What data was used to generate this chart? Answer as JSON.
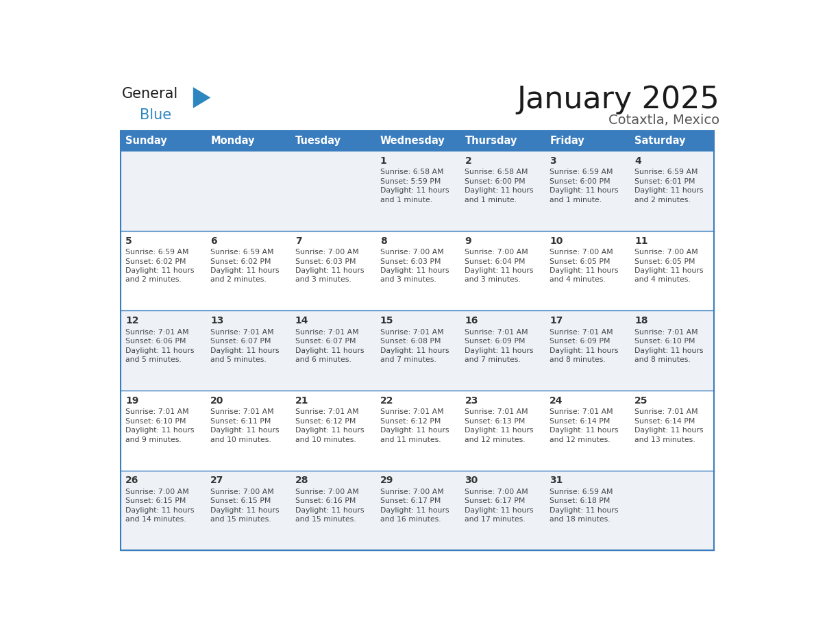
{
  "title": "January 2025",
  "subtitle": "Cotaxtla, Mexico",
  "header_bg_color": "#3a7dbf",
  "header_text_color": "#ffffff",
  "weekdays": [
    "Sunday",
    "Monday",
    "Tuesday",
    "Wednesday",
    "Thursday",
    "Friday",
    "Saturday"
  ],
  "row_bg_even": "#eef2f7",
  "row_bg_odd": "#ffffff",
  "cell_border_color": "#3a7dbf",
  "day_num_color": "#333333",
  "day_text_color": "#444444",
  "logo_general_color": "#1a1a1a",
  "logo_blue_color": "#2e86c1",
  "logo_triangle_color": "#2e86c1",
  "calendar": [
    [
      {
        "day": null,
        "sunrise": null,
        "sunset": null,
        "daylight": null
      },
      {
        "day": null,
        "sunrise": null,
        "sunset": null,
        "daylight": null
      },
      {
        "day": null,
        "sunrise": null,
        "sunset": null,
        "daylight": null
      },
      {
        "day": 1,
        "sunrise": "6:58 AM",
        "sunset": "5:59 PM",
        "daylight": "11 hours and 1 minute."
      },
      {
        "day": 2,
        "sunrise": "6:58 AM",
        "sunset": "6:00 PM",
        "daylight": "11 hours and 1 minute."
      },
      {
        "day": 3,
        "sunrise": "6:59 AM",
        "sunset": "6:00 PM",
        "daylight": "11 hours and 1 minute."
      },
      {
        "day": 4,
        "sunrise": "6:59 AM",
        "sunset": "6:01 PM",
        "daylight": "11 hours and 2 minutes."
      }
    ],
    [
      {
        "day": 5,
        "sunrise": "6:59 AM",
        "sunset": "6:02 PM",
        "daylight": "11 hours and 2 minutes."
      },
      {
        "day": 6,
        "sunrise": "6:59 AM",
        "sunset": "6:02 PM",
        "daylight": "11 hours and 2 minutes."
      },
      {
        "day": 7,
        "sunrise": "7:00 AM",
        "sunset": "6:03 PM",
        "daylight": "11 hours and 3 minutes."
      },
      {
        "day": 8,
        "sunrise": "7:00 AM",
        "sunset": "6:03 PM",
        "daylight": "11 hours and 3 minutes."
      },
      {
        "day": 9,
        "sunrise": "7:00 AM",
        "sunset": "6:04 PM",
        "daylight": "11 hours and 3 minutes."
      },
      {
        "day": 10,
        "sunrise": "7:00 AM",
        "sunset": "6:05 PM",
        "daylight": "11 hours and 4 minutes."
      },
      {
        "day": 11,
        "sunrise": "7:00 AM",
        "sunset": "6:05 PM",
        "daylight": "11 hours and 4 minutes."
      }
    ],
    [
      {
        "day": 12,
        "sunrise": "7:01 AM",
        "sunset": "6:06 PM",
        "daylight": "11 hours and 5 minutes."
      },
      {
        "day": 13,
        "sunrise": "7:01 AM",
        "sunset": "6:07 PM",
        "daylight": "11 hours and 5 minutes."
      },
      {
        "day": 14,
        "sunrise": "7:01 AM",
        "sunset": "6:07 PM",
        "daylight": "11 hours and 6 minutes."
      },
      {
        "day": 15,
        "sunrise": "7:01 AM",
        "sunset": "6:08 PM",
        "daylight": "11 hours and 7 minutes."
      },
      {
        "day": 16,
        "sunrise": "7:01 AM",
        "sunset": "6:09 PM",
        "daylight": "11 hours and 7 minutes."
      },
      {
        "day": 17,
        "sunrise": "7:01 AM",
        "sunset": "6:09 PM",
        "daylight": "11 hours and 8 minutes."
      },
      {
        "day": 18,
        "sunrise": "7:01 AM",
        "sunset": "6:10 PM",
        "daylight": "11 hours and 8 minutes."
      }
    ],
    [
      {
        "day": 19,
        "sunrise": "7:01 AM",
        "sunset": "6:10 PM",
        "daylight": "11 hours and 9 minutes."
      },
      {
        "day": 20,
        "sunrise": "7:01 AM",
        "sunset": "6:11 PM",
        "daylight": "11 hours and 10 minutes."
      },
      {
        "day": 21,
        "sunrise": "7:01 AM",
        "sunset": "6:12 PM",
        "daylight": "11 hours and 10 minutes."
      },
      {
        "day": 22,
        "sunrise": "7:01 AM",
        "sunset": "6:12 PM",
        "daylight": "11 hours and 11 minutes."
      },
      {
        "day": 23,
        "sunrise": "7:01 AM",
        "sunset": "6:13 PM",
        "daylight": "11 hours and 12 minutes."
      },
      {
        "day": 24,
        "sunrise": "7:01 AM",
        "sunset": "6:14 PM",
        "daylight": "11 hours and 12 minutes."
      },
      {
        "day": 25,
        "sunrise": "7:01 AM",
        "sunset": "6:14 PM",
        "daylight": "11 hours and 13 minutes."
      }
    ],
    [
      {
        "day": 26,
        "sunrise": "7:00 AM",
        "sunset": "6:15 PM",
        "daylight": "11 hours and 14 minutes."
      },
      {
        "day": 27,
        "sunrise": "7:00 AM",
        "sunset": "6:15 PM",
        "daylight": "11 hours and 15 minutes."
      },
      {
        "day": 28,
        "sunrise": "7:00 AM",
        "sunset": "6:16 PM",
        "daylight": "11 hours and 15 minutes."
      },
      {
        "day": 29,
        "sunrise": "7:00 AM",
        "sunset": "6:17 PM",
        "daylight": "11 hours and 16 minutes."
      },
      {
        "day": 30,
        "sunrise": "7:00 AM",
        "sunset": "6:17 PM",
        "daylight": "11 hours and 17 minutes."
      },
      {
        "day": 31,
        "sunrise": "6:59 AM",
        "sunset": "6:18 PM",
        "daylight": "11 hours and 18 minutes."
      },
      {
        "day": null,
        "sunrise": null,
        "sunset": null,
        "daylight": null
      }
    ]
  ]
}
